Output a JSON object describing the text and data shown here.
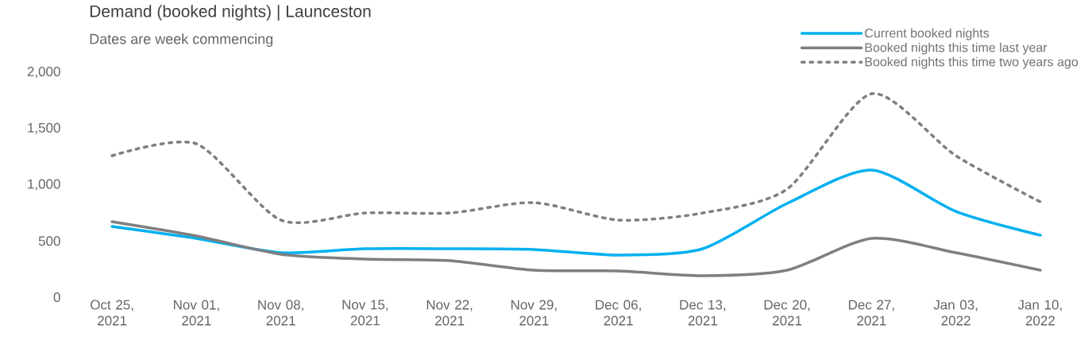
{
  "chart_data": {
    "type": "line",
    "title": "Demand (booked nights) | Launceston",
    "subtitle": "Dates are week commencing",
    "categories": [
      "Oct 25, 2021",
      "Nov 01, 2021",
      "Nov 08, 2021",
      "Nov 15, 2021",
      "Nov 22, 2021",
      "Nov 29, 2021",
      "Dec 06, 2021",
      "Dec 13, 2021",
      "Dec 20, 2021",
      "Dec 27, 2021",
      "Jan 03, 2022",
      "Jan 10, 2022"
    ],
    "series": [
      {
        "name": "Current booked nights",
        "color": "#00b0f0",
        "line_style": "solid",
        "values": [
          629,
          523,
          396,
          431,
          431,
          424,
          375,
          431,
          834,
          1131,
          763,
          551
        ]
      },
      {
        "name": "Booked nights this time last year",
        "color": "#7f7f7f",
        "line_style": "solid",
        "values": [
          671,
          544,
          382,
          339,
          325,
          240,
          233,
          191,
          240,
          523,
          396,
          240
        ]
      },
      {
        "name": "Booked nights this time two years ago",
        "color": "#7f7f7f",
        "line_style": "dotted",
        "values": [
          1258,
          1364,
          686,
          749,
          749,
          841,
          686,
          749,
          961,
          1809,
          1258,
          848
        ]
      }
    ],
    "ylim": [
      0,
      2000
    ],
    "yticks": [
      0,
      500,
      {
        "value": 1000,
        "label": "1,000"
      },
      {
        "value": 1500,
        "label": "1,500"
      },
      {
        "value": 2000,
        "label": "2,000"
      }
    ],
    "marker": "none",
    "grid": false,
    "legend": "top right"
  }
}
